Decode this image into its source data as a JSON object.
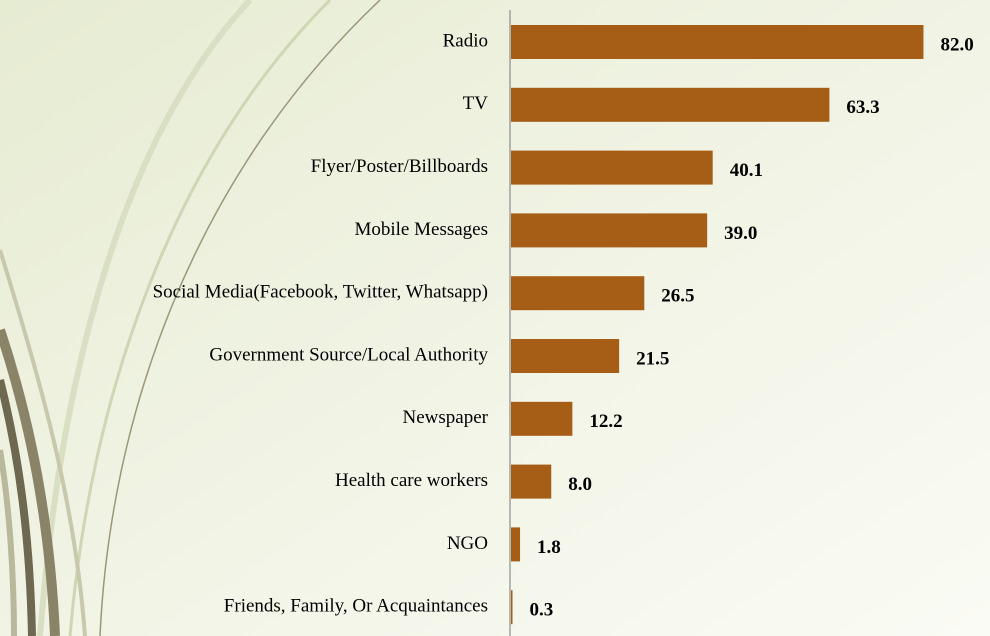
{
  "chart_data": {
    "type": "bar",
    "orientation": "horizontal",
    "categories": [
      "Radio",
      "TV",
      "Flyer/Poster/Billboards",
      "Mobile Messages",
      "Social Media(Facebook, Twitter, Whatsapp)",
      "Government Source/Local Authority",
      "Newspaper",
      "Health care workers",
      "NGO",
      "Friends, Family, Or Acquaintances"
    ],
    "values": [
      82,
      63.3,
      40.1,
      39,
      26.5,
      21.5,
      12.2,
      8,
      1.8,
      0.3
    ],
    "value_labels": [
      "82.0",
      "63.3",
      "40.1",
      "39.0",
      "26.5",
      "21.5",
      "12.2",
      "8.0",
      "1.8",
      "0.3"
    ],
    "color": "#a65e17"
  }
}
